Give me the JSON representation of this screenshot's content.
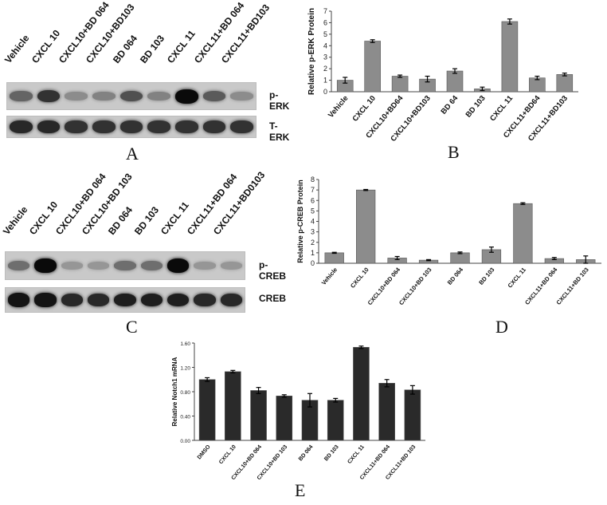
{
  "panel_A": {
    "letter": "A",
    "lanes": [
      "Vehicle",
      "CXCL 10",
      "CXCL10+BD 064",
      "CXCL10+BD103",
      "BD 064",
      "BD 103",
      "CXCL 11",
      "CXCL11+BD 064",
      "CXCL11+BD103"
    ],
    "blots": [
      {
        "label": "p-ERK",
        "intensity": [
          0.55,
          0.8,
          0.35,
          0.4,
          0.65,
          0.4,
          1.0,
          0.6,
          0.35
        ]
      },
      {
        "label": "T-ERK",
        "intensity": [
          0.85,
          0.85,
          0.8,
          0.8,
          0.8,
          0.8,
          0.8,
          0.8,
          0.8
        ]
      }
    ]
  },
  "panel_C": {
    "letter": "C",
    "lanes": [
      "Vehicle",
      "CXCL 10",
      "CXCL10+BD 064",
      "CXCL10+BD 103",
      "BD 064",
      "BD 103",
      "CXCL 11",
      "CXCL11+BD 064",
      "CXCL11+BD0103"
    ],
    "blots": [
      {
        "label": "p-CREB",
        "intensity": [
          0.5,
          1.0,
          0.3,
          0.3,
          0.5,
          0.5,
          1.0,
          0.3,
          0.3
        ]
      },
      {
        "label": "CREB",
        "intensity": [
          0.95,
          0.95,
          0.85,
          0.85,
          0.9,
          0.9,
          0.9,
          0.85,
          0.85
        ]
      }
    ]
  },
  "chart_data": [
    {
      "id": "B",
      "letter": "B",
      "type": "bar",
      "ylabel": "Relative p-ERK Protein",
      "categories": [
        "Vehicle",
        "CXCL 10",
        "CXCL10+BD64",
        "CXCL10+BD103",
        "BD 64",
        "BD 103",
        "CXCL 11",
        "CXCL11+BD64",
        "CXCL11+BD103"
      ],
      "values": [
        1.0,
        4.4,
        1.35,
        1.1,
        1.8,
        0.25,
        6.1,
        1.2,
        1.5
      ],
      "errors": [
        0.25,
        0.12,
        0.1,
        0.25,
        0.2,
        0.15,
        0.22,
        0.15,
        0.12
      ],
      "ylim": [
        0,
        7
      ],
      "yticks": [
        "0",
        "1",
        "2",
        "3",
        "4",
        "5",
        "6",
        "7"
      ],
      "bar_color": "#8c8c8c"
    },
    {
      "id": "D",
      "letter": "D",
      "type": "bar",
      "ylabel": "Relative p-CREB Protein",
      "categories": [
        "Vehicle",
        "CXCL 10",
        "CXCL10+BD 064",
        "CXCL10+BD 103",
        "BD 064",
        "BD 103",
        "CXCL 11",
        "CXCL11+BD 064",
        "CXCL11+BD 103"
      ],
      "values": [
        1.0,
        7.0,
        0.5,
        0.3,
        1.0,
        1.3,
        5.7,
        0.45,
        0.35
      ],
      "errors": [
        0.05,
        0.05,
        0.15,
        0.05,
        0.08,
        0.25,
        0.08,
        0.1,
        0.35
      ],
      "ylim": [
        0,
        8
      ],
      "yticks": [
        "0",
        "1",
        "2",
        "3",
        "4",
        "5",
        "6",
        "7",
        "8"
      ],
      "bar_color": "#8c8c8c"
    },
    {
      "id": "E",
      "letter": "E",
      "type": "bar",
      "ylabel": "Relative Notch1 mRNA",
      "categories": [
        "DMSO",
        "CXCL 10",
        "CXCL10+BD 064",
        "CXCL10+BD 103",
        "BD 064",
        "BD 103",
        "CXCL 11",
        "CXCL11+BD 064",
        "CXCL11+BD 103"
      ],
      "values": [
        1.0,
        1.13,
        0.82,
        0.73,
        0.66,
        0.66,
        1.53,
        0.94,
        0.83
      ],
      "errors": [
        0.03,
        0.02,
        0.05,
        0.02,
        0.11,
        0.03,
        0.02,
        0.06,
        0.07
      ],
      "ylim": [
        0,
        1.6
      ],
      "yticks": [
        "0.00",
        "0.40",
        "0.80",
        "1.20",
        "1.60"
      ],
      "bar_color": "#2a2a2a"
    }
  ]
}
